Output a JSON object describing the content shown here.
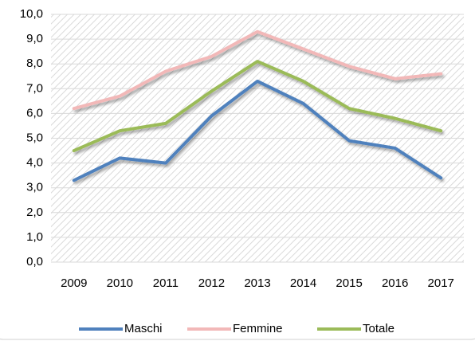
{
  "chart_data": {
    "type": "line",
    "categories": [
      "2009",
      "2010",
      "2011",
      "2012",
      "2013",
      "2014",
      "2015",
      "2016",
      "2017"
    ],
    "series": [
      {
        "name": "Maschi",
        "color": "#4f81bd",
        "values": [
          3.3,
          4.2,
          4.0,
          5.9,
          7.3,
          6.4,
          4.9,
          4.6,
          3.4
        ]
      },
      {
        "name": "Femmine",
        "color": "#f2b8b8",
        "values": [
          6.2,
          6.7,
          7.7,
          8.3,
          9.3,
          8.6,
          7.9,
          7.4,
          7.6
        ]
      },
      {
        "name": "Totale",
        "color": "#9bbb59",
        "values": [
          4.5,
          5.3,
          5.6,
          6.9,
          8.1,
          7.3,
          6.2,
          5.8,
          5.3
        ]
      }
    ],
    "ylim": [
      0,
      10
    ],
    "yticks": [
      {
        "value": 0,
        "label": "0,0"
      },
      {
        "value": 1,
        "label": "1,0"
      },
      {
        "value": 2,
        "label": "2,0"
      },
      {
        "value": 3,
        "label": "3,0"
      },
      {
        "value": 4,
        "label": "4,0"
      },
      {
        "value": 5,
        "label": "5,0"
      },
      {
        "value": 6,
        "label": "6,0"
      },
      {
        "value": 7,
        "label": "7,0"
      },
      {
        "value": 8,
        "label": "8,0"
      },
      {
        "value": 9,
        "label": "9,0"
      },
      {
        "value": 10,
        "label": "10,0"
      }
    ],
    "grid": true,
    "legend": "bottom"
  }
}
